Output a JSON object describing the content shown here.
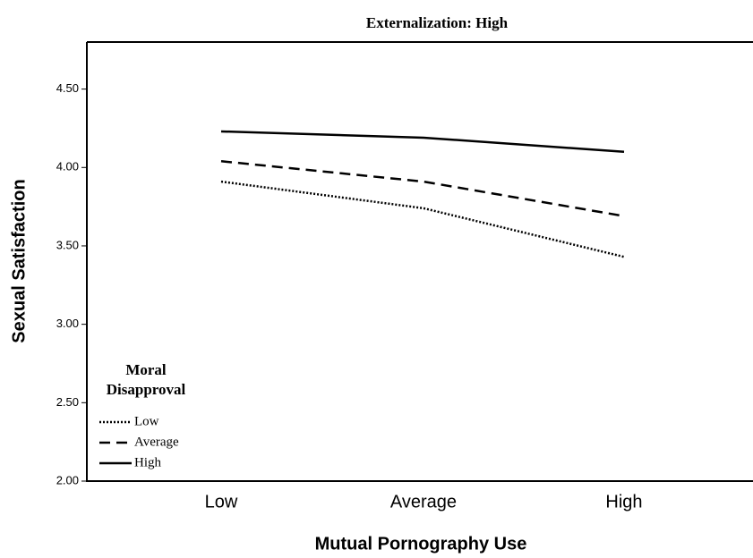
{
  "chart_data": {
    "type": "line",
    "title": "Externalization: High",
    "x_label": "Mutual Pornography Use",
    "y_label": "Sexual Satisfaction",
    "categories": [
      "Low",
      "Average",
      "High"
    ],
    "legend_title": "Moral Disapproval",
    "legend_position": "lower left",
    "series": [
      {
        "name": "Low",
        "color": "#000000",
        "dash": "dotted",
        "values": [
          3.91,
          3.74,
          3.43
        ]
      },
      {
        "name": "Average",
        "color": "#000000",
        "dash": "dashed",
        "values": [
          4.04,
          3.91,
          3.69
        ]
      },
      {
        "name": "High",
        "color": "#000000",
        "dash": "solid",
        "values": [
          4.23,
          4.19,
          4.1
        ]
      }
    ],
    "ylim": [
      2.0,
      4.8
    ],
    "yticks": [
      {
        "value": 2.0,
        "label": "2.00"
      },
      {
        "value": 2.5,
        "label": "2.50"
      },
      {
        "value": 3.0,
        "label": "3.00"
      },
      {
        "value": 3.5,
        "label": "3.50"
      },
      {
        "value": 4.0,
        "label": "4.00"
      },
      {
        "value": 4.5,
        "label": "4.50"
      }
    ],
    "grid": false
  }
}
